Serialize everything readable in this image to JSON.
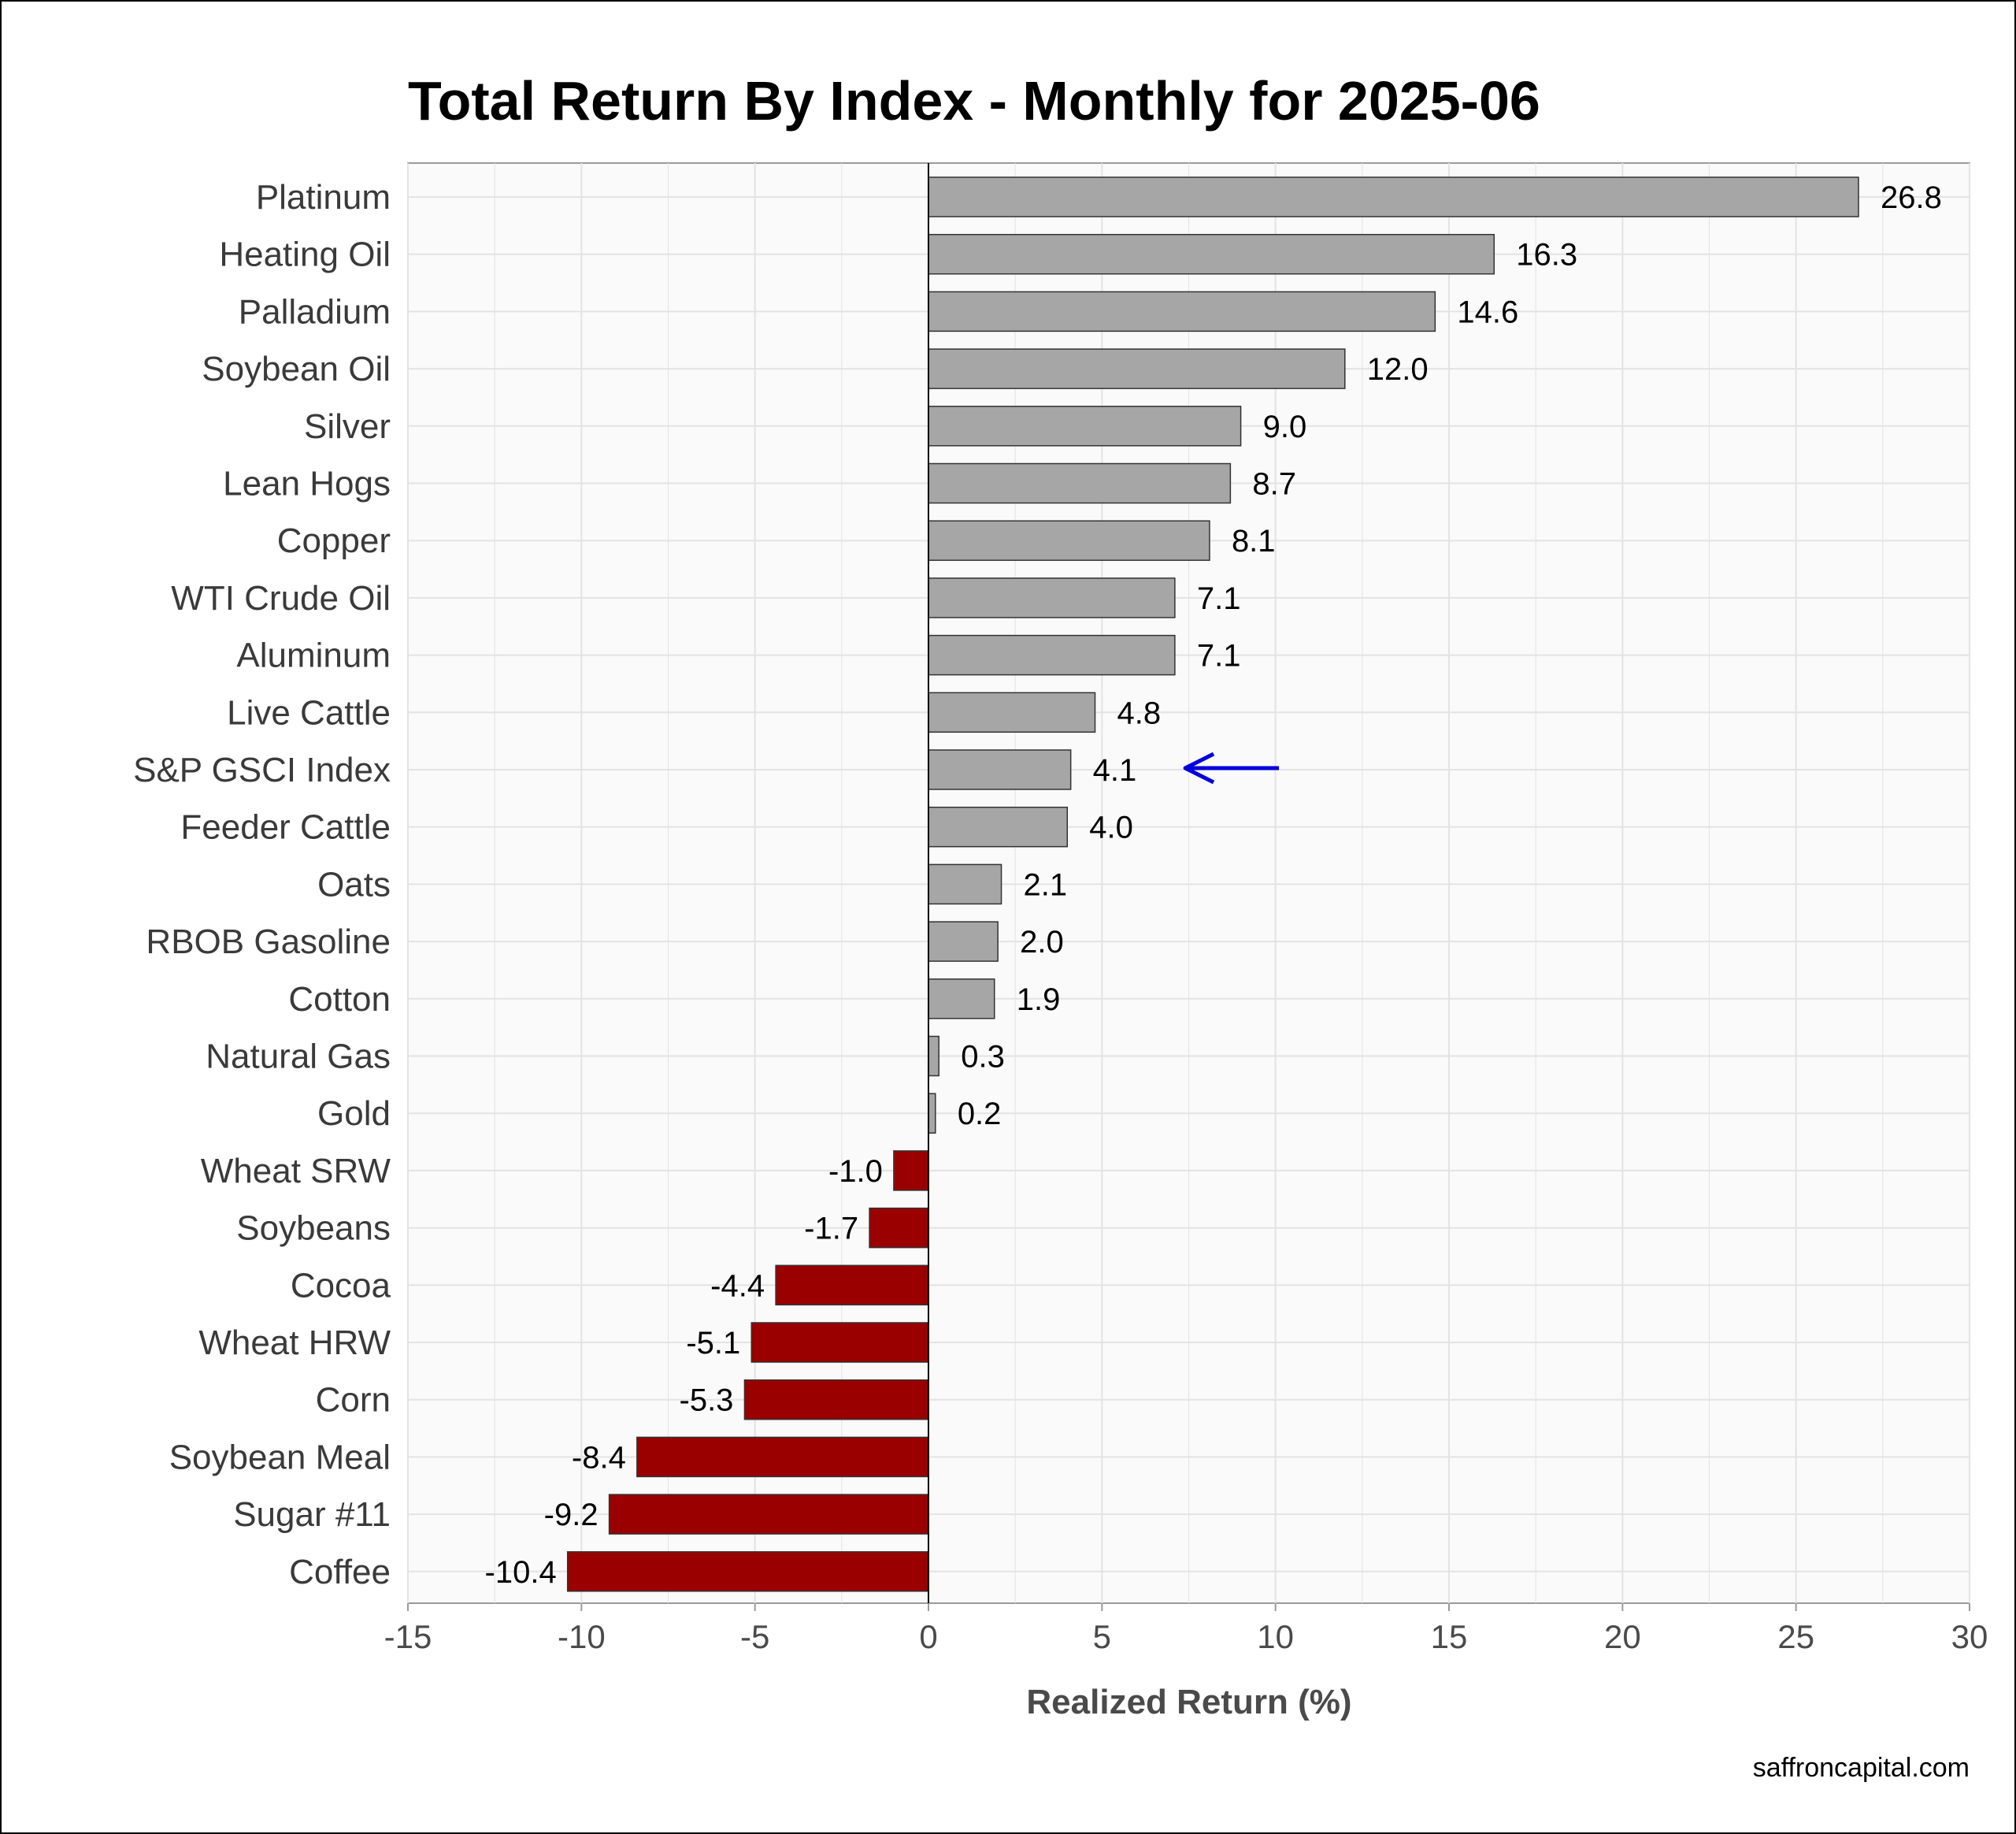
{
  "chart_data": {
    "type": "bar",
    "orientation": "horizontal",
    "title": "Total Return By Index - Monthly for 2025-06",
    "xlabel": "Realized Return (%)",
    "ylabel": "",
    "xlim": [
      -15,
      30
    ],
    "x_ticks": [
      -15,
      -10,
      -5,
      0,
      5,
      10,
      15,
      20,
      25,
      30
    ],
    "grid": true,
    "categories": [
      "Platinum",
      "Heating Oil",
      "Palladium",
      "Soybean Oil",
      "Silver",
      "Lean Hogs",
      "Copper",
      "WTI Crude Oil",
      "Aluminum",
      "Live Cattle",
      "S&P GSCI Index",
      "Feeder Cattle",
      "Oats",
      "RBOB Gasoline",
      "Cotton",
      "Natural Gas",
      "Gold",
      "Wheat SRW",
      "Soybeans",
      "Cocoa",
      "Wheat HRW",
      "Corn",
      "Soybean Meal",
      "Sugar #11",
      "Coffee"
    ],
    "values": [
      26.8,
      16.3,
      14.6,
      12.0,
      9.0,
      8.7,
      8.1,
      7.1,
      7.1,
      4.8,
      4.1,
      4.0,
      2.1,
      2.0,
      1.9,
      0.3,
      0.2,
      -1.0,
      -1.7,
      -4.4,
      -5.1,
      -5.3,
      -8.4,
      -9.2,
      -10.4
    ],
    "value_labels": [
      "26.8",
      "16.3",
      "14.6",
      "12.0",
      "9.0",
      "8.7",
      "8.1",
      "7.1",
      "7.1",
      "4.8",
      "4.1",
      "4.0",
      "2.1",
      "2.0",
      "1.9",
      "0.3",
      "0.2",
      "-1.0",
      "-1.7",
      "-4.4",
      "-5.1",
      "-5.3",
      "-8.4",
      "-9.2",
      "-10.4"
    ],
    "highlight": "S&P GSCI Index",
    "colors": {
      "positive": "#a6a6a6",
      "negative": "#9b0000",
      "bar_border": "#333333",
      "highlight_text": "#0000ee",
      "arrow": "#0000dd",
      "panel_background": "#fafafa",
      "gridline": "#e3e3e3"
    }
  },
  "credit": "saffroncapital.com"
}
